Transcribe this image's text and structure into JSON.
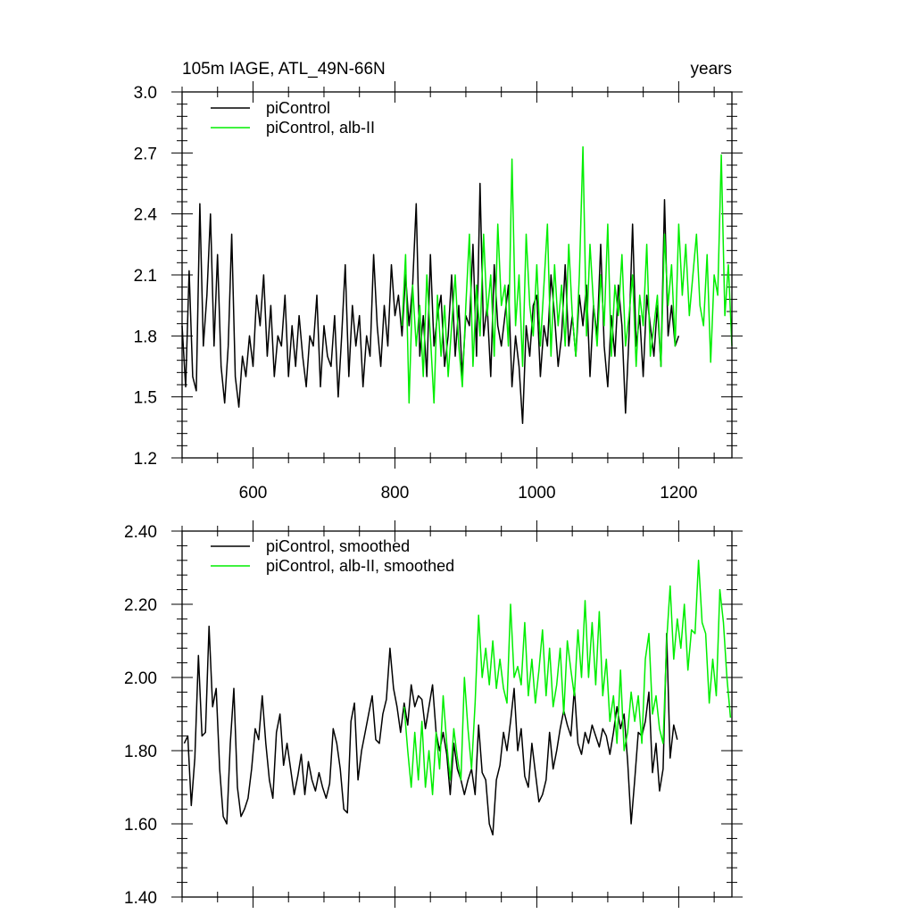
{
  "chart_data": [
    {
      "type": "line",
      "title": "105m IAGE, ATL_49N-66N",
      "units_label": "years",
      "xlabel": "",
      "ylabel": "",
      "xlim": [
        500,
        1275
      ],
      "ylim": [
        1.2,
        3.0
      ],
      "x_ticks": [
        600,
        800,
        1000,
        1200
      ],
      "x_tick_labels": [
        "600",
        "800",
        "1000",
        "1200"
      ],
      "y_ticks": [
        1.2,
        1.5,
        1.8,
        2.1,
        2.4,
        2.7,
        3.0
      ],
      "y_tick_labels": [
        "1.2",
        "1.5",
        "1.8",
        "2.1",
        "2.4",
        "2.7",
        "3.0"
      ],
      "grid": false,
      "legend_position": "top-left",
      "series": [
        {
          "name": "piControl",
          "color": "#000000",
          "x": [
            500,
            505,
            510,
            515,
            520,
            525,
            530,
            535,
            540,
            545,
            550,
            555,
            560,
            565,
            570,
            575,
            580,
            585,
            590,
            595,
            600,
            605,
            610,
            615,
            620,
            625,
            630,
            635,
            640,
            645,
            650,
            655,
            660,
            665,
            670,
            675,
            680,
            685,
            690,
            695,
            700,
            705,
            710,
            715,
            720,
            725,
            730,
            735,
            740,
            745,
            750,
            755,
            760,
            765,
            770,
            775,
            780,
            785,
            790,
            795,
            800,
            805,
            810,
            815,
            820,
            825,
            830,
            835,
            840,
            845,
            850,
            855,
            860,
            865,
            870,
            875,
            880,
            885,
            890,
            895,
            900,
            905,
            910,
            915,
            920,
            925,
            930,
            935,
            940,
            945,
            950,
            955,
            960,
            965,
            970,
            975,
            980,
            985,
            990,
            995,
            1000,
            1005,
            1010,
            1015,
            1020,
            1025,
            1030,
            1035,
            1040,
            1045,
            1050,
            1055,
            1060,
            1065,
            1070,
            1075,
            1080,
            1085,
            1090,
            1095,
            1100,
            1105,
            1110,
            1115,
            1120,
            1125,
            1130,
            1135,
            1140,
            1145,
            1150,
            1155,
            1160,
            1165,
            1170,
            1175,
            1180,
            1185,
            1190,
            1195,
            1200
          ],
          "y": [
            1.85,
            1.55,
            2.12,
            1.6,
            1.53,
            2.45,
            1.75,
            2.0,
            2.4,
            1.75,
            2.2,
            1.65,
            1.47,
            1.75,
            2.3,
            1.6,
            1.45,
            1.7,
            1.6,
            1.8,
            1.65,
            2.0,
            1.85,
            2.1,
            1.7,
            1.95,
            1.6,
            1.8,
            1.75,
            2.0,
            1.6,
            1.85,
            1.65,
            1.9,
            1.7,
            1.55,
            1.8,
            1.75,
            2.0,
            1.55,
            1.85,
            1.7,
            1.65,
            1.9,
            1.5,
            1.8,
            2.15,
            1.6,
            1.95,
            1.75,
            1.9,
            1.55,
            1.8,
            1.7,
            2.2,
            1.85,
            1.65,
            1.95,
            1.75,
            2.15,
            1.9,
            2.0,
            1.8,
            2.1,
            1.85,
            2.05,
            2.45,
            1.7,
            1.9,
            1.6,
            2.2,
            1.75,
            1.9,
            2.0,
            1.65,
            1.8,
            2.1,
            1.7,
            1.95,
            1.6,
            1.9,
            1.85,
            2.25,
            1.7,
            2.55,
            1.8,
            1.95,
            1.6,
            2.15,
            1.85,
            1.75,
            1.9,
            2.05,
            1.55,
            1.8,
            1.65,
            1.37,
            1.85,
            1.7,
            1.95,
            2.0,
            1.6,
            1.85,
            1.75,
            2.1,
            1.9,
            1.65,
            1.8,
            2.15,
            1.75,
            1.9,
            1.7,
            2.0,
            1.85,
            2.05,
            1.6,
            1.95,
            1.8,
            2.25,
            1.75,
            1.55,
            1.9,
            1.7,
            2.05,
            1.85,
            1.42,
            1.8,
            2.35,
            1.75,
            1.9,
            1.6,
            2.0,
            1.85,
            1.7,
            1.95,
            1.65,
            2.47,
            1.8,
            1.95,
            1.75,
            1.8
          ]
        },
        {
          "name": "piControl, alb-II",
          "color": "#00ee00",
          "x": [
            810,
            815,
            820,
            825,
            830,
            835,
            840,
            845,
            850,
            855,
            860,
            865,
            870,
            875,
            880,
            885,
            890,
            895,
            900,
            905,
            910,
            915,
            920,
            925,
            930,
            935,
            940,
            945,
            950,
            955,
            960,
            965,
            970,
            975,
            980,
            985,
            990,
            995,
            1000,
            1005,
            1010,
            1015,
            1020,
            1025,
            1030,
            1035,
            1040,
            1045,
            1050,
            1055,
            1060,
            1065,
            1070,
            1075,
            1080,
            1085,
            1090,
            1095,
            1100,
            1105,
            1110,
            1115,
            1120,
            1125,
            1130,
            1135,
            1140,
            1145,
            1150,
            1155,
            1160,
            1165,
            1170,
            1175,
            1180,
            1185,
            1190,
            1195,
            1200,
            1205,
            1210,
            1215,
            1220,
            1225,
            1230,
            1235,
            1240,
            1245,
            1250,
            1255,
            1260,
            1265,
            1270,
            1275
          ],
          "y": [
            1.85,
            2.2,
            1.47,
            2.05,
            1.75,
            1.95,
            1.6,
            2.1,
            1.8,
            1.47,
            2.0,
            1.7,
            1.95,
            1.6,
            1.85,
            2.1,
            1.75,
            1.55,
            1.95,
            2.3,
            1.65,
            2.05,
            1.8,
            2.3,
            1.9,
            2.1,
            1.7,
            2.35,
            1.95,
            2.05,
            1.75,
            2.67,
            1.85,
            2.1,
            1.65,
            2.3,
            1.95,
            1.8,
            2.15,
            1.75,
            2.05,
            2.35,
            1.7,
            2.15,
            1.85,
            2.05,
            1.75,
            2.25,
            1.9,
            1.7,
            2.1,
            2.73,
            1.8,
            2.25,
            1.95,
            1.75,
            2.1,
            1.85,
            2.35,
            1.7,
            2.05,
            1.9,
            2.2,
            1.75,
            1.9,
            2.1,
            1.65,
            2.0,
            1.85,
            2.25,
            1.7,
            1.85,
            2.0,
            1.65,
            2.3,
            1.95,
            2.15,
            1.75,
            2.35,
            2.0,
            2.25,
            1.9,
            2.1,
            2.3,
            1.95,
            1.85,
            2.2,
            1.67,
            2.1,
            2.0,
            2.69,
            1.9,
            2.15,
            1.75
          ]
        }
      ]
    },
    {
      "type": "line",
      "title": "",
      "xlabel": "",
      "ylabel": "",
      "xlim": [
        500,
        1275
      ],
      "ylim": [
        1.4,
        2.4
      ],
      "x_ticks": [
        600,
        800,
        1000,
        1200
      ],
      "x_tick_labels": [],
      "y_ticks": [
        1.4,
        1.6,
        1.8,
        2.0,
        2.2,
        2.4
      ],
      "y_tick_labels": [
        "1.40",
        "1.60",
        "1.80",
        "2.00",
        "2.20",
        "2.40"
      ],
      "grid": false,
      "legend_position": "top-left",
      "series": [
        {
          "name": "piControl, smoothed",
          "color": "#000000",
          "x": [
            503,
            508,
            513,
            518,
            523,
            528,
            533,
            538,
            543,
            548,
            553,
            558,
            563,
            568,
            573,
            578,
            583,
            588,
            593,
            598,
            603,
            608,
            613,
            618,
            623,
            628,
            633,
            638,
            643,
            648,
            653,
            658,
            663,
            668,
            673,
            678,
            683,
            688,
            693,
            698,
            703,
            708,
            713,
            718,
            723,
            728,
            733,
            738,
            743,
            748,
            753,
            758,
            763,
            768,
            773,
            778,
            783,
            788,
            793,
            798,
            803,
            808,
            813,
            818,
            823,
            828,
            833,
            838,
            843,
            848,
            853,
            858,
            863,
            868,
            873,
            878,
            883,
            888,
            893,
            898,
            903,
            908,
            913,
            918,
            923,
            928,
            933,
            938,
            943,
            948,
            953,
            958,
            963,
            968,
            973,
            978,
            983,
            988,
            993,
            998,
            1003,
            1008,
            1013,
            1018,
            1023,
            1028,
            1033,
            1038,
            1043,
            1048,
            1053,
            1058,
            1063,
            1068,
            1073,
            1078,
            1083,
            1088,
            1093,
            1098,
            1103,
            1108,
            1113,
            1118,
            1123,
            1128,
            1133,
            1138,
            1143,
            1148,
            1153,
            1158,
            1163,
            1168,
            1173,
            1178,
            1183,
            1188,
            1193,
            1198
          ],
          "y": [
            1.82,
            1.84,
            1.65,
            1.78,
            2.06,
            1.84,
            1.85,
            2.14,
            1.92,
            1.97,
            1.75,
            1.62,
            1.6,
            1.82,
            1.97,
            1.7,
            1.62,
            1.64,
            1.67,
            1.75,
            1.86,
            1.83,
            1.95,
            1.82,
            1.72,
            1.67,
            1.85,
            1.9,
            1.76,
            1.82,
            1.75,
            1.68,
            1.73,
            1.79,
            1.68,
            1.77,
            1.72,
            1.69,
            1.74,
            1.7,
            1.67,
            1.71,
            1.86,
            1.82,
            1.75,
            1.64,
            1.63,
            1.88,
            1.93,
            1.72,
            1.8,
            1.85,
            1.9,
            1.95,
            1.83,
            1.82,
            1.9,
            1.94,
            2.08,
            1.97,
            1.92,
            1.85,
            1.93,
            1.87,
            1.98,
            1.92,
            1.95,
            1.94,
            1.86,
            1.92,
            1.98,
            1.85,
            1.8,
            1.85,
            1.79,
            1.68,
            1.82,
            1.75,
            1.72,
            1.68,
            1.72,
            1.75,
            1.68,
            1.87,
            1.74,
            1.72,
            1.6,
            1.57,
            1.72,
            1.76,
            1.85,
            1.8,
            1.88,
            1.97,
            1.8,
            1.86,
            1.73,
            1.7,
            1.82,
            1.74,
            1.66,
            1.68,
            1.72,
            1.85,
            1.75,
            1.8,
            1.86,
            1.91,
            1.87,
            1.84,
            1.97,
            1.82,
            1.79,
            1.85,
            1.82,
            1.87,
            1.84,
            1.81,
            1.86,
            1.84,
            1.79,
            1.85,
            1.92,
            1.86,
            1.9,
            1.77,
            1.6,
            1.72,
            1.85,
            1.84,
            1.88,
            1.96,
            1.74,
            1.82,
            1.69,
            1.75,
            2.12,
            1.78,
            1.87,
            1.83
          ]
        },
        {
          "name": "piControl, alb-II, smoothed",
          "color": "#00ee00",
          "x": [
            813,
            818,
            823,
            828,
            833,
            838,
            843,
            848,
            853,
            858,
            863,
            868,
            873,
            878,
            883,
            888,
            893,
            898,
            903,
            908,
            913,
            918,
            923,
            928,
            933,
            938,
            943,
            948,
            953,
            958,
            963,
            968,
            973,
            978,
            983,
            988,
            993,
            998,
            1003,
            1008,
            1013,
            1018,
            1023,
            1028,
            1033,
            1038,
            1043,
            1048,
            1053,
            1058,
            1063,
            1068,
            1073,
            1078,
            1083,
            1088,
            1093,
            1098,
            1103,
            1108,
            1113,
            1118,
            1123,
            1128,
            1133,
            1138,
            1143,
            1148,
            1153,
            1158,
            1163,
            1168,
            1173,
            1178,
            1183,
            1188,
            1193,
            1198,
            1203,
            1208,
            1213,
            1218,
            1223,
            1228,
            1233,
            1238,
            1243,
            1248,
            1253,
            1258,
            1263,
            1268,
            1273
          ],
          "y": [
            1.92,
            1.8,
            1.7,
            1.85,
            1.72,
            1.88,
            1.7,
            1.8,
            1.68,
            1.85,
            1.75,
            1.95,
            1.82,
            1.72,
            1.86,
            1.78,
            1.72,
            2.0,
            1.86,
            1.75,
            1.93,
            2.17,
            2.0,
            2.08,
            1.98,
            2.1,
            1.97,
            2.05,
            1.97,
            1.93,
            2.2,
            2.0,
            2.03,
            1.98,
            2.15,
            1.95,
            2.05,
            1.93,
            2.02,
            2.13,
            1.95,
            2.08,
            1.92,
            1.98,
            2.08,
            1.9,
            2.1,
            2.02,
            1.95,
            2.13,
            2.0,
            2.21,
            2.0,
            2.15,
            1.98,
            2.18,
            1.95,
            2.05,
            1.88,
            1.95,
            1.82,
            2.02,
            1.8,
            1.85,
            1.96,
            1.88,
            1.95,
            1.82,
            2.05,
            2.12,
            1.9,
            1.95,
            1.86,
            1.82,
            2.1,
            2.25,
            2.05,
            2.16,
            2.08,
            2.2,
            2.02,
            2.13,
            2.12,
            2.32,
            2.15,
            2.12,
            1.93,
            2.05,
            1.95,
            2.24,
            2.15,
            2.0,
            1.89
          ]
        }
      ]
    }
  ]
}
